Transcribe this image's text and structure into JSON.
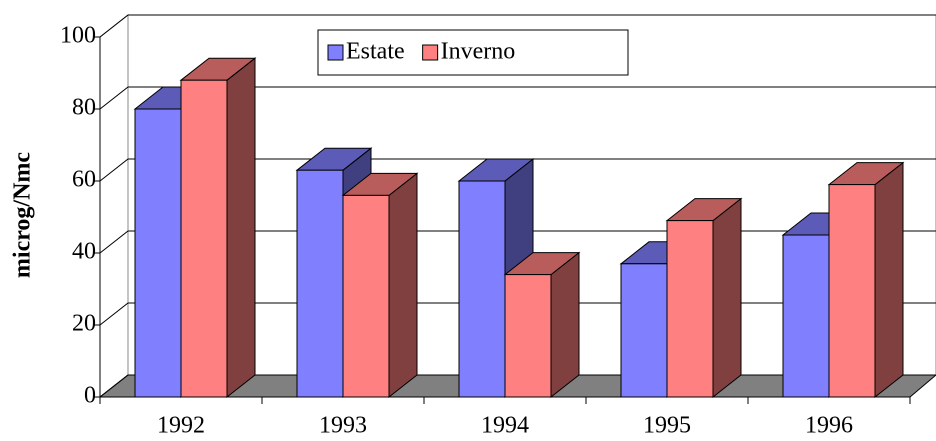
{
  "chart_data": {
    "type": "bar3d",
    "y_label": "microg/Nmc",
    "categories": [
      "1992",
      "1993",
      "1994",
      "1995",
      "1996"
    ],
    "series": [
      {
        "name": "Estate",
        "color": "#8080ff",
        "values": [
          80,
          63,
          60,
          37,
          45
        ]
      },
      {
        "name": "Inverno",
        "color": "#ff8080",
        "values": [
          88,
          56,
          34,
          49,
          59
        ]
      }
    ],
    "ylim": [
      0,
      100
    ],
    "yticks": [
      0,
      20,
      40,
      60,
      80,
      100
    ],
    "grid": true,
    "legend": "top"
  }
}
